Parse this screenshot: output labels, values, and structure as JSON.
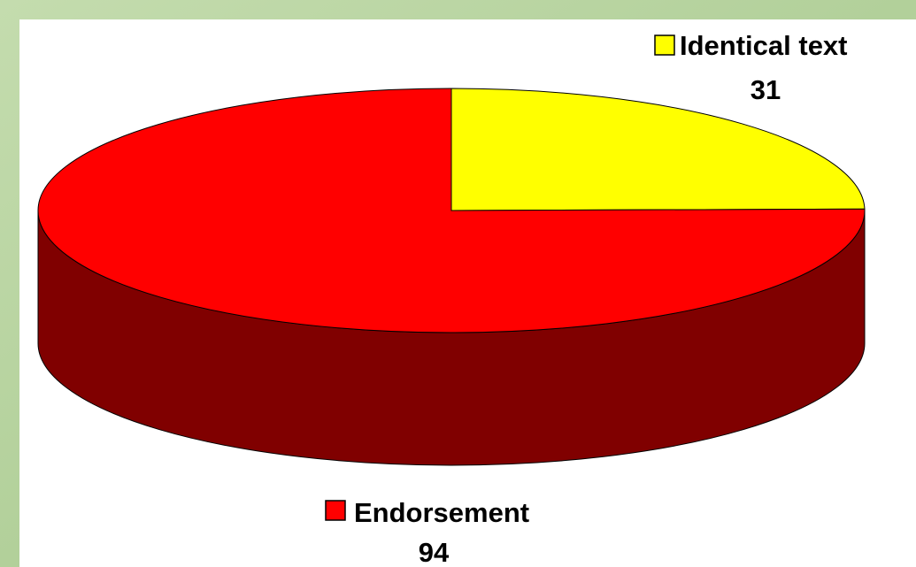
{
  "chart_data": {
    "type": "pie",
    "categories": [
      "Identical text",
      "Endorsement"
    ],
    "values": [
      31,
      94
    ],
    "colors": [
      "#ffff00",
      "#ff0000"
    ]
  }
}
